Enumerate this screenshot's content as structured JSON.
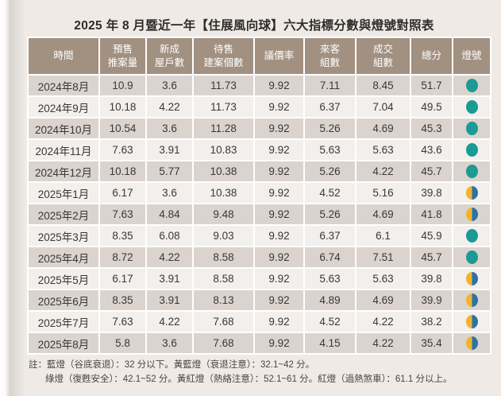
{
  "title": "2025 年 8 月暨近一年【住展風向球】六大指標分數與燈號對照表",
  "colors": {
    "page_bg": "#efeae6",
    "header_bg": "#a29080",
    "row_dark": "#dbd4ce",
    "row_light": "#f2efec",
    "green_light": "#1b9b94",
    "yellow": "#f0b42c",
    "blue": "#2b72a9"
  },
  "table": {
    "columns": [
      {
        "id": "time",
        "lines": [
          "時間"
        ],
        "width": 88
      },
      {
        "id": "presale",
        "lines": [
          "預售",
          "推案量"
        ],
        "width": 57
      },
      {
        "id": "new-homes",
        "lines": [
          "新成",
          "屋戶數"
        ],
        "width": 57
      },
      {
        "id": "unsold",
        "lines": [
          "待售",
          "建案個數"
        ],
        "width": 75
      },
      {
        "id": "negotiation",
        "lines": [
          "議價率"
        ],
        "width": 61
      },
      {
        "id": "visitors",
        "lines": [
          "來客",
          "組數"
        ],
        "width": 63
      },
      {
        "id": "deals",
        "lines": [
          "成交",
          "組數"
        ],
        "width": 67
      },
      {
        "id": "total",
        "lines": [
          "總分"
        ],
        "width": 51
      },
      {
        "id": "signal",
        "lines": [
          "燈號"
        ],
        "width": 46
      }
    ],
    "rows": [
      {
        "time": "2024年8月",
        "values": [
          "10.9",
          "3.6",
          "11.73",
          "9.92",
          "7.11",
          "8.45",
          "51.7"
        ],
        "light": "green"
      },
      {
        "time": "2024年9月",
        "values": [
          "10.18",
          "4.22",
          "11.73",
          "9.92",
          "6.37",
          "7.04",
          "49.5"
        ],
        "light": "green"
      },
      {
        "time": "2024年10月",
        "values": [
          "10.54",
          "3.6",
          "11.28",
          "9.92",
          "5.26",
          "4.69",
          "45.3"
        ],
        "light": "green"
      },
      {
        "time": "2024年11月",
        "values": [
          "7.63",
          "3.91",
          "10.83",
          "9.92",
          "5.63",
          "5.63",
          "43.6"
        ],
        "light": "green"
      },
      {
        "time": "2024年12月",
        "values": [
          "10.18",
          "5.77",
          "10.38",
          "9.92",
          "5.26",
          "4.22",
          "45.7"
        ],
        "light": "green"
      },
      {
        "time": "2025年1月",
        "values": [
          "6.17",
          "3.6",
          "10.38",
          "9.92",
          "4.52",
          "5.16",
          "39.8"
        ],
        "light": "yellow-blue"
      },
      {
        "time": "2025年2月",
        "values": [
          "7.63",
          "4.84",
          "9.48",
          "9.92",
          "5.26",
          "4.69",
          "41.8"
        ],
        "light": "yellow-blue"
      },
      {
        "time": "2025年3月",
        "values": [
          "8.35",
          "6.08",
          "9.03",
          "9.92",
          "6.37",
          "6.1",
          "45.9"
        ],
        "light": "green"
      },
      {
        "time": "2025年4月",
        "values": [
          "8.72",
          "4.22",
          "8.58",
          "9.92",
          "6.74",
          "7.51",
          "45.7"
        ],
        "light": "green"
      },
      {
        "time": "2025年5月",
        "values": [
          "6.17",
          "3.91",
          "8.58",
          "9.92",
          "5.63",
          "5.63",
          "39.8"
        ],
        "light": "yellow-blue"
      },
      {
        "time": "2025年6月",
        "values": [
          "8.35",
          "3.91",
          "8.13",
          "9.92",
          "4.89",
          "4.69",
          "39.9"
        ],
        "light": "yellow-blue"
      },
      {
        "time": "2025年7月",
        "values": [
          "7.63",
          "4.22",
          "7.68",
          "9.92",
          "4.52",
          "4.22",
          "38.2"
        ],
        "light": "yellow-blue"
      },
      {
        "time": "2025年8月",
        "values": [
          "5.8",
          "3.6",
          "7.68",
          "9.92",
          "4.15",
          "4.22",
          "35.4"
        ],
        "light": "yellow-blue"
      }
    ]
  },
  "footnote": {
    "line1": "註：藍燈（谷底衰退）：32 分以下。黃藍燈（衰退注意）：32.1~42 分。",
    "line2": "綠燈（復甦安全）：42.1~52 分。黃紅燈（熱絡注意）：52.1~61 分。紅燈（過熱煞車）：61.1 分以上。"
  }
}
